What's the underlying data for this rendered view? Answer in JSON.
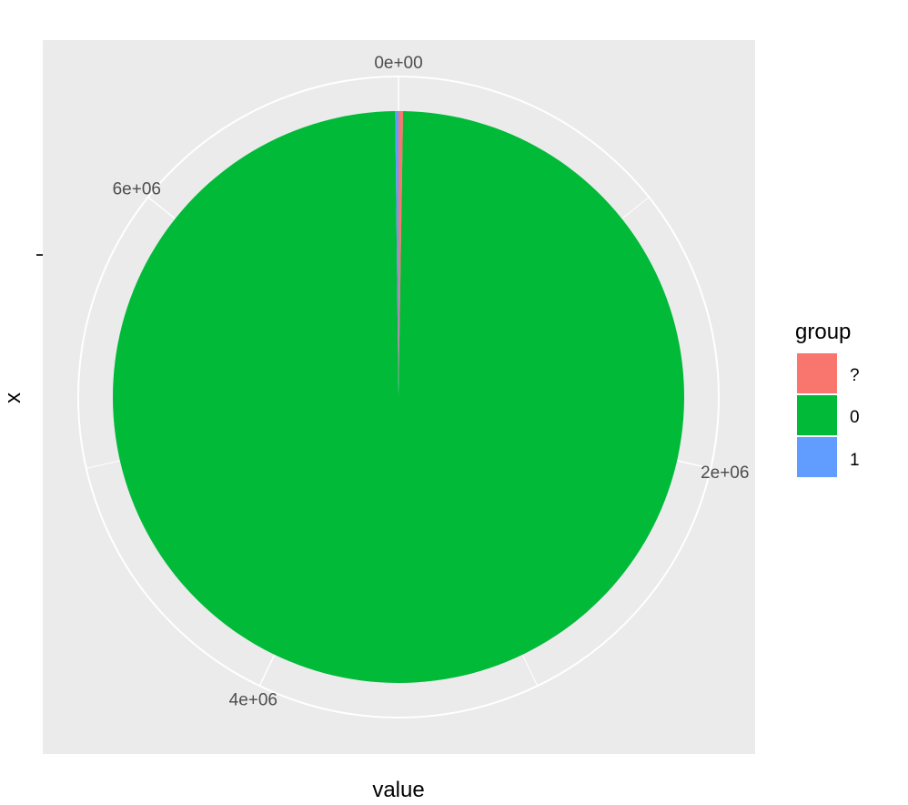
{
  "chart_data": {
    "type": "pie",
    "xlabel": "value",
    "ylabel": "x",
    "total": 7000000,
    "slices": [
      {
        "category": "?",
        "value": 18000
      },
      {
        "category": "0",
        "value": 6969000
      },
      {
        "category": "1",
        "value": 13000
      }
    ],
    "theta_ticks": [
      {
        "label": "0e+00",
        "value": 0
      },
      {
        "label": "2e+06",
        "value": 2000000
      },
      {
        "label": "4e+06",
        "value": 4000000
      },
      {
        "label": "6e+06",
        "value": 6000000
      }
    ],
    "legend": {
      "title": "group",
      "position": "right",
      "items": [
        {
          "label": "?",
          "color": "#F8766D"
        },
        {
          "label": "0",
          "color": "#00BA38"
        },
        {
          "label": "1",
          "color": "#619CFF"
        }
      ]
    },
    "panel_background": "#EBEBEB",
    "grid_color": "#FFFFFF",
    "grid": true
  }
}
